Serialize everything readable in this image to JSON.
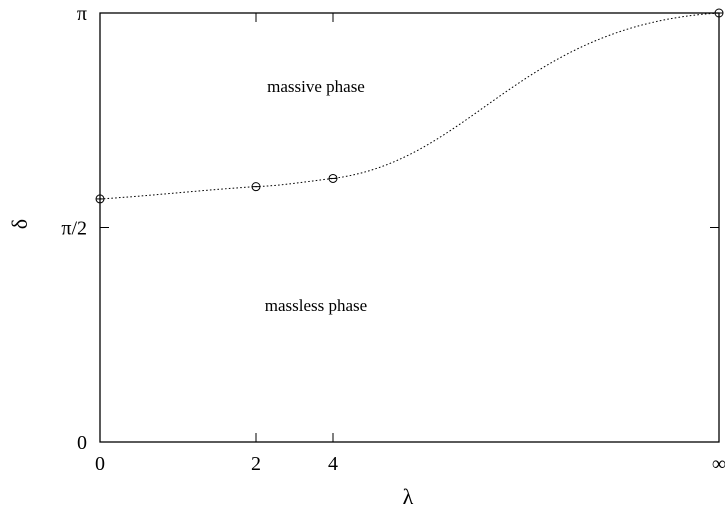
{
  "chart_data": {
    "type": "line",
    "title": "",
    "xlabel": "λ",
    "ylabel": "δ",
    "x_ticks": [
      {
        "value": 0,
        "label": "0"
      },
      {
        "value": 2,
        "label": "2"
      },
      {
        "value": 4,
        "label": "4"
      },
      {
        "value": "inf",
        "label": "∞"
      }
    ],
    "y_ticks": [
      {
        "value": 0,
        "label": "0"
      },
      {
        "value": 1.5708,
        "label": "π/2"
      },
      {
        "value": 3.1416,
        "label": "π"
      }
    ],
    "ylim": [
      0,
      3.1416
    ],
    "grid": false,
    "series": [
      {
        "style": "dotted",
        "marker": "circle-plus",
        "points": [
          {
            "x": 0,
            "y": 1.78
          },
          {
            "x": 2,
            "y": 1.87
          },
          {
            "x": 4,
            "y": 1.93
          },
          {
            "x": "inf",
            "y": 3.1416
          }
        ]
      }
    ],
    "annotations": [
      {
        "text": "massive phase",
        "x": 4,
        "y": 2.6
      },
      {
        "text": "massless phase",
        "x": 4,
        "y": 1.0
      }
    ]
  }
}
